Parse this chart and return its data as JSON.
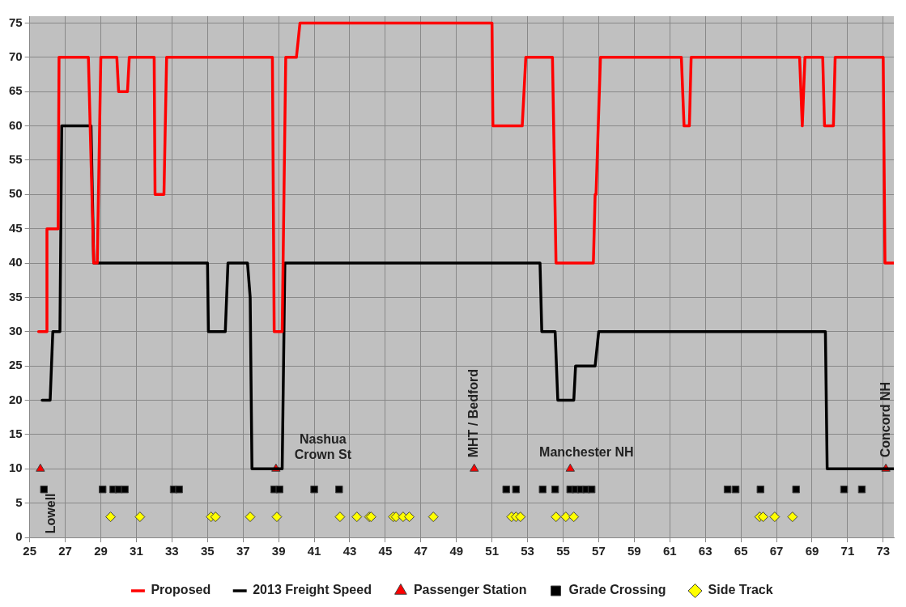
{
  "chart_data": {
    "type": "line",
    "xlim": [
      25,
      73.6
    ],
    "ylim": [
      0,
      76
    ],
    "xticks": [
      25,
      27,
      29,
      31,
      33,
      35,
      37,
      39,
      41,
      43,
      45,
      47,
      49,
      51,
      53,
      55,
      57,
      59,
      61,
      63,
      65,
      67,
      69,
      71,
      73
    ],
    "yticks": [
      0,
      5,
      10,
      15,
      20,
      25,
      30,
      35,
      40,
      45,
      50,
      55,
      60,
      65,
      70,
      75
    ],
    "grid": true,
    "legend": "bottom",
    "annotations": [
      {
        "text": "Lowell",
        "x": 25.6,
        "y": 10
      },
      {
        "text": "Nashua\nCrown St",
        "x": 38.85,
        "y": 10
      },
      {
        "text": "MHT / Bedford",
        "x": 50.0,
        "y": 10
      },
      {
        "text": "Manchester NH",
        "x": 55.4,
        "y": 10
      },
      {
        "text": "Concord NH",
        "x": 73.15,
        "y": 10
      }
    ],
    "series": [
      {
        "name": "Proposed",
        "type": "line",
        "color": "#ff0000",
        "marker": "none",
        "line_style": "solid",
        "x": [
          25.5,
          25.95,
          25.97,
          26.6,
          26.65,
          28.3,
          28.6,
          28.8,
          29.0,
          29.9,
          30.0,
          30.5,
          30.6,
          32.0,
          32.05,
          32.55,
          32.7,
          38.65,
          38.75,
          39.2,
          39.4,
          40.0,
          40.2,
          51.0,
          51.05,
          52.7,
          52.9,
          54.4,
          54.6,
          56.7,
          56.8,
          56.85,
          57.1,
          61.65,
          61.8,
          62.1,
          62.2,
          68.3,
          68.45,
          68.6,
          69.6,
          69.7,
          70.2,
          70.3,
          73.0,
          73.1,
          73.6
        ],
        "values": [
          30,
          30,
          45,
          45,
          70,
          70,
          40,
          40,
          70,
          70,
          65,
          65,
          70,
          70,
          50,
          50,
          70,
          70,
          30,
          30,
          70,
          70,
          75,
          75,
          60,
          60,
          70,
          70,
          40,
          40,
          50,
          50,
          70,
          70,
          60,
          60,
          70,
          70,
          60,
          70,
          70,
          60,
          60,
          70,
          70,
          40,
          40
        ]
      },
      {
        "name": "2013 Freight Speed",
        "type": "line",
        "color": "#000000",
        "marker": "none",
        "line_style": "solid",
        "x": [
          25.7,
          26.15,
          26.3,
          26.7,
          26.8,
          28.45,
          28.6,
          35.0,
          35.05,
          36.0,
          36.15,
          37.25,
          37.4,
          37.5,
          39.2,
          39.35,
          53.7,
          53.8,
          54.55,
          54.7,
          55.6,
          55.7,
          56.8,
          57.0,
          69.75,
          69.85,
          73.6
        ],
        "values": [
          20,
          20,
          30,
          30,
          60,
          60,
          40,
          40,
          30,
          30,
          40,
          40,
          35,
          10,
          10,
          40,
          40,
          30,
          30,
          20,
          20,
          25,
          25,
          30,
          30,
          10,
          10
        ]
      },
      {
        "name": "Passenger Station",
        "type": "scatter",
        "color": "#ff0000",
        "marker": "triangle",
        "x": [
          25.6,
          38.85,
          50.0,
          55.4,
          73.15
        ],
        "values": [
          10,
          10,
          10,
          10,
          10
        ]
      },
      {
        "name": "Grade Crossing",
        "type": "scatter",
        "color": "#000000",
        "marker": "square",
        "x": [
          25.8,
          29.1,
          29.7,
          30.0,
          30.35,
          33.1,
          33.4,
          38.75,
          39.05,
          41.0,
          42.4,
          51.8,
          52.35,
          53.85,
          54.55,
          55.4,
          55.7,
          56.0,
          56.3,
          56.6,
          64.25,
          64.7,
          66.1,
          68.1,
          70.8,
          71.8
        ],
        "values": [
          7,
          7,
          7,
          7,
          7,
          7,
          7,
          7,
          7,
          7,
          7,
          7,
          7,
          7,
          7,
          7,
          7,
          7,
          7,
          7,
          7,
          7,
          7,
          7,
          7,
          7
        ]
      },
      {
        "name": "Side Track",
        "type": "scatter",
        "color": "#ffff00",
        "marker": "diamond",
        "x": [
          29.55,
          31.2,
          35.2,
          35.45,
          37.4,
          38.9,
          42.45,
          43.4,
          44.1,
          44.2,
          45.45,
          45.6,
          46.0,
          46.35,
          47.7,
          52.1,
          52.35,
          52.6,
          54.6,
          55.15,
          55.6,
          66.05,
          66.25,
          66.9,
          67.9
        ],
        "values": [
          3,
          3,
          3,
          3,
          3,
          3,
          3,
          3,
          3,
          3,
          3,
          3,
          3,
          3,
          3,
          3,
          3,
          3,
          3,
          3,
          3,
          3,
          3,
          3,
          3
        ]
      }
    ]
  }
}
